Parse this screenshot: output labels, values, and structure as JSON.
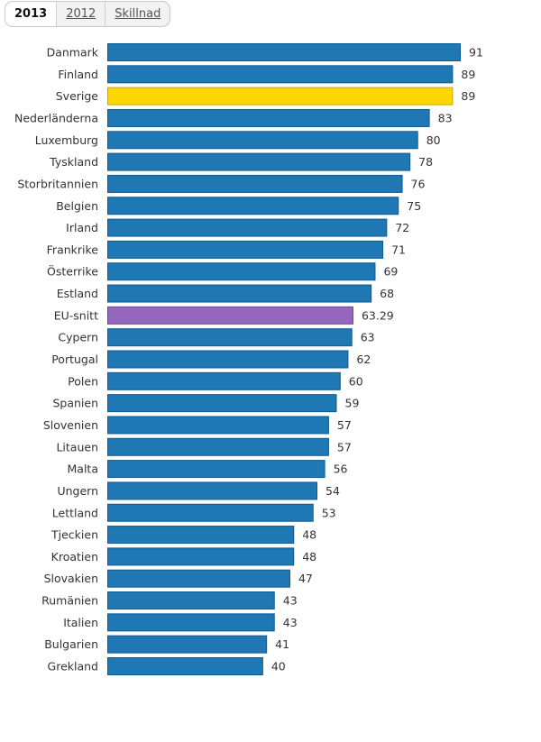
{
  "tabs": [
    {
      "label": "2013",
      "active": true
    },
    {
      "label": "2012",
      "active": false
    },
    {
      "label": "Skillnad",
      "active": false
    }
  ],
  "chart_data": {
    "type": "bar",
    "orientation": "horizontal",
    "categories": [
      "Danmark",
      "Finland",
      "Sverige",
      "Nederländerna",
      "Luxemburg",
      "Tyskland",
      "Storbritannien",
      "Belgien",
      "Irland",
      "Frankrike",
      "Österrike",
      "Estland",
      "EU-snitt",
      "Cypern",
      "Portugal",
      "Polen",
      "Spanien",
      "Slovenien",
      "Litauen",
      "Malta",
      "Ungern",
      "Lettland",
      "Tjeckien",
      "Kroatien",
      "Slovakien",
      "Rumänien",
      "Italien",
      "Bulgarien",
      "Grekland"
    ],
    "values": [
      91,
      89,
      89,
      83,
      80,
      78,
      76,
      75,
      72,
      71,
      69,
      68,
      63.29,
      63,
      62,
      60,
      59,
      57,
      57,
      56,
      54,
      53,
      48,
      48,
      47,
      43,
      43,
      41,
      40
    ],
    "xlim": [
      0,
      100
    ],
    "grid": false,
    "colors": {
      "default": "#1f77b4",
      "Sverige": "#ffd700",
      "EU-snitt": "#9467bd"
    },
    "borders": {
      "default": "#0e5a93",
      "Sverige": "#c8a800",
      "EU-snitt": "#6a4596"
    }
  }
}
